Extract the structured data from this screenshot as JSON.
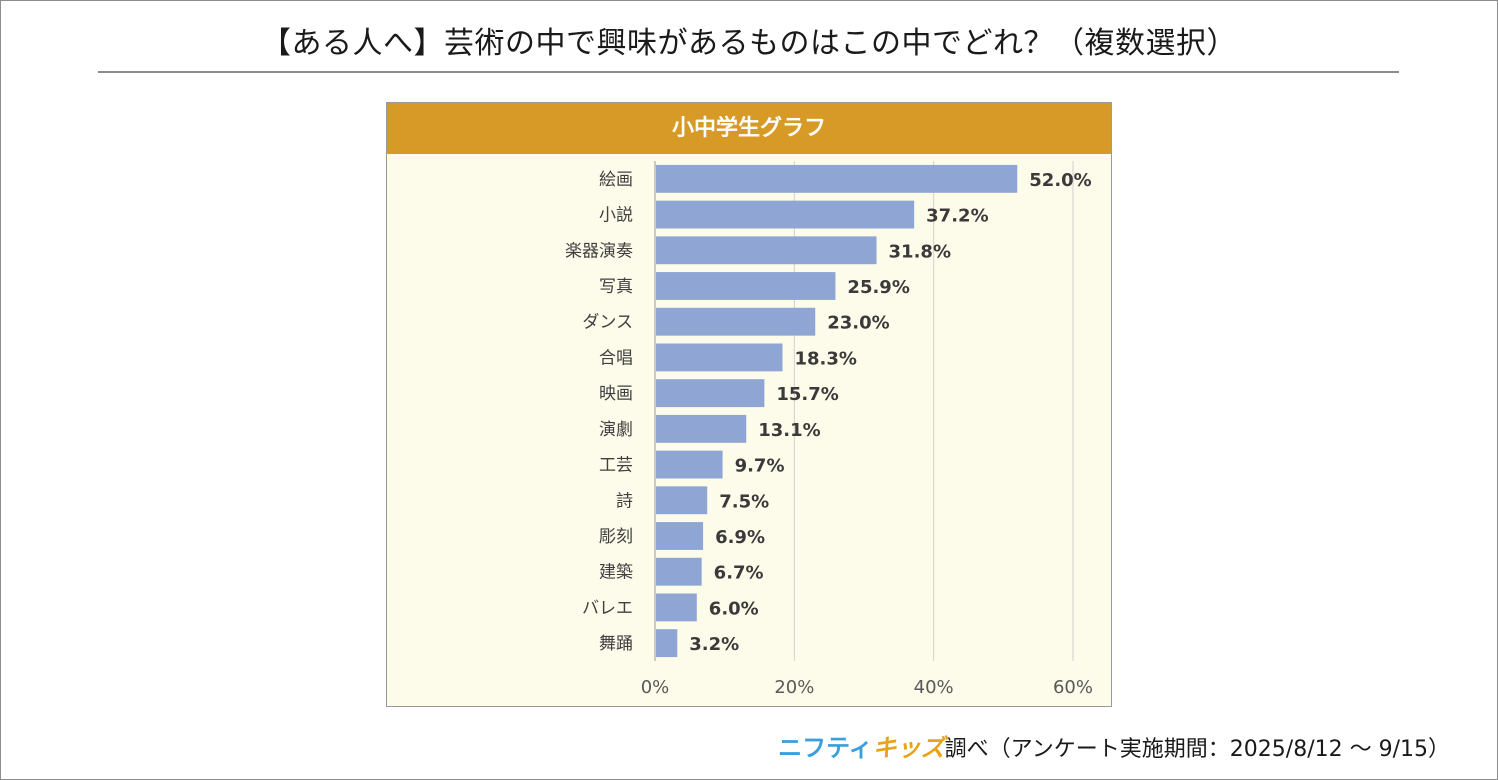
{
  "page": {
    "title": "【ある人へ】芸術の中で興味があるものはこの中でどれ？（複数選択）",
    "footer_brand_1": "ニフティ",
    "footer_brand_2": "キッズ",
    "footer_text": "調べ（アンケート実施期間：2025/8/12 ～ 9/15）"
  },
  "colors": {
    "header": "#d79a26",
    "bar": "#8fa6d4",
    "plot_bg": "#fdfbea",
    "grid": "#d0d0d0"
  },
  "chart_data": {
    "type": "bar",
    "orientation": "horizontal",
    "title": "小中学生グラフ",
    "categories": [
      "絵画",
      "小説",
      "楽器演奏",
      "写真",
      "ダンス",
      "合唱",
      "映画",
      "演劇",
      "工芸",
      "詩",
      "彫刻",
      "建築",
      "バレエ",
      "舞踊"
    ],
    "values": [
      52.0,
      37.2,
      31.8,
      25.9,
      23.0,
      18.3,
      15.7,
      13.1,
      9.7,
      7.5,
      6.9,
      6.7,
      6.0,
      3.2
    ],
    "value_labels": [
      "52.0%",
      "37.2%",
      "31.8%",
      "25.9%",
      "23.0%",
      "18.3%",
      "15.7%",
      "13.1%",
      "9.7%",
      "7.5%",
      "6.9%",
      "6.7%",
      "6.0%",
      "3.2%"
    ],
    "xlim": [
      0,
      60
    ],
    "x_ticks": [
      0,
      20,
      40,
      60
    ],
    "x_tick_labels": [
      "0%",
      "20%",
      "40%",
      "60%"
    ],
    "grid": true,
    "legend": "none"
  }
}
